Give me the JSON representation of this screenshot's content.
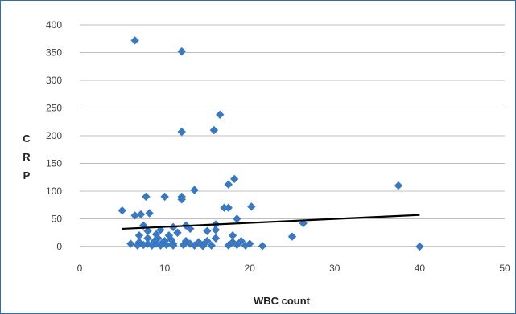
{
  "chart_data": {
    "type": "scatter",
    "xlabel": "WBC count",
    "ylabel": "C R P",
    "xlim": [
      0,
      50
    ],
    "ylim": [
      0,
      400
    ],
    "x_ticks": [
      "0",
      "10",
      "20",
      "30",
      "40",
      "50"
    ],
    "y_ticks": [
      "0",
      "50",
      "100",
      "150",
      "200",
      "250",
      "300",
      "350",
      "400"
    ],
    "grid": "horizontal",
    "colors": {
      "marker": "#3a78c0",
      "trendline": "#000000",
      "gridline": "#bfbfbf"
    },
    "trendline": {
      "x": [
        5,
        40
      ],
      "y": [
        32,
        57
      ]
    },
    "series": [
      {
        "points": [
          [
            6.5,
            372
          ],
          [
            12,
            352
          ],
          [
            16.5,
            238
          ],
          [
            12,
            207
          ],
          [
            15.8,
            210
          ],
          [
            18.2,
            122
          ],
          [
            17.5,
            112
          ],
          [
            37.5,
            110
          ],
          [
            13.5,
            102
          ],
          [
            12,
            90
          ],
          [
            7.8,
            90
          ],
          [
            10,
            90
          ],
          [
            12,
            85
          ],
          [
            17,
            70
          ],
          [
            17.5,
            70
          ],
          [
            20.2,
            72
          ],
          [
            5,
            65
          ],
          [
            6.5,
            56
          ],
          [
            7.2,
            58
          ],
          [
            8.2,
            60
          ],
          [
            18.5,
            50
          ],
          [
            26.3,
            42
          ],
          [
            16,
            40
          ],
          [
            7.5,
            38
          ],
          [
            11,
            35
          ],
          [
            12.5,
            38
          ],
          [
            9.5,
            30
          ],
          [
            8,
            28
          ],
          [
            13,
            32
          ],
          [
            15,
            28
          ],
          [
            16,
            30
          ],
          [
            18,
            20
          ],
          [
            25,
            18
          ],
          [
            6,
            5
          ],
          [
            6.8,
            2
          ],
          [
            7,
            8
          ],
          [
            7.5,
            3
          ],
          [
            8,
            5
          ],
          [
            8.5,
            2
          ],
          [
            8.8,
            10
          ],
          [
            9,
            5
          ],
          [
            9.2,
            15
          ],
          [
            9.5,
            2
          ],
          [
            9.8,
            8
          ],
          [
            10.2,
            3
          ],
          [
            10.5,
            20
          ],
          [
            10.8,
            12
          ],
          [
            11,
            5
          ],
          [
            11.5,
            25
          ],
          [
            12.2,
            3
          ],
          [
            12.5,
            10
          ],
          [
            13,
            5
          ],
          [
            13.5,
            2
          ],
          [
            14,
            8
          ],
          [
            14.5,
            3
          ],
          [
            15,
            10
          ],
          [
            15.5,
            2
          ],
          [
            16,
            15
          ],
          [
            17.5,
            2
          ],
          [
            18,
            8
          ],
          [
            18.5,
            3
          ],
          [
            19,
            10
          ],
          [
            19.5,
            2
          ],
          [
            20,
            5
          ],
          [
            21.5,
            1
          ],
          [
            40,
            0
          ],
          [
            7,
            20
          ],
          [
            8,
            15
          ],
          [
            9,
            22
          ],
          [
            10,
            10
          ],
          [
            11,
            2
          ],
          [
            14.5,
            1
          ]
        ]
      }
    ]
  }
}
